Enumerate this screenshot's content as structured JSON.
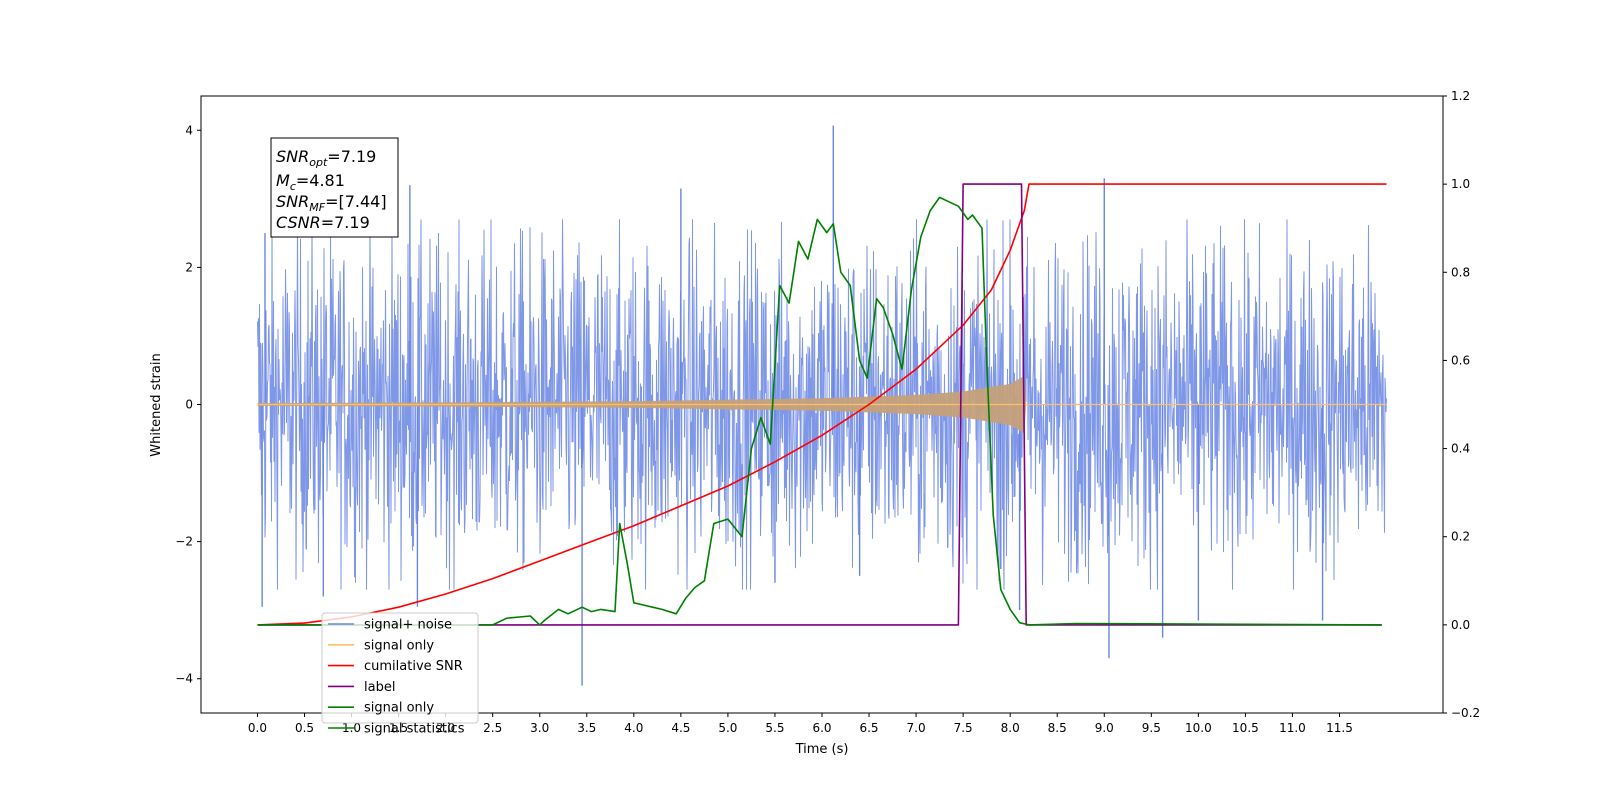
{
  "chart_data": {
    "type": "line",
    "xlabel": "Time (s)",
    "ylabel": "Whitened strain",
    "xlim": [
      -0.6,
      12.6
    ],
    "ylim_left": [
      -4.5,
      4.5
    ],
    "ylim_right": [
      -0.2,
      1.2
    ],
    "x_ticks": [
      0.0,
      0.5,
      1.0,
      1.5,
      2.0,
      2.5,
      3.0,
      3.5,
      4.0,
      4.5,
      5.0,
      5.5,
      6.0,
      6.5,
      7.0,
      7.5,
      8.0,
      8.5,
      9.0,
      9.5,
      10.0,
      10.5,
      11.0,
      11.5
    ],
    "x_tick_labels": [
      "0.0",
      "0.5",
      "1.0",
      "1.5",
      "2.0",
      "2.5",
      "3.0",
      "3.5",
      "4.0",
      "4.5",
      "5.0",
      "5.5",
      "6.0",
      "6.5",
      "7.0",
      "7.5",
      "8.0",
      "8.5",
      "9.0",
      "9.5",
      "10.0",
      "10.5",
      "11.0",
      "11.5"
    ],
    "y_left_ticks": [
      4,
      2,
      0,
      -2,
      -4
    ],
    "y_left_tick_labels": [
      "4",
      "2",
      "0",
      "−2",
      "−4"
    ],
    "y_right_ticks": [
      1.2,
      1.0,
      0.8,
      0.6,
      0.4,
      0.2,
      0.0,
      -0.2
    ],
    "y_right_tick_labels": [
      "1.2",
      "1.0",
      "0.8",
      "0.6",
      "0.4",
      "0.2",
      "0.0",
      "−0.2"
    ],
    "annotation": {
      "snr_opt": {
        "sym": "SNR",
        "sub": "opt",
        "value": "=7.19"
      },
      "mc": {
        "sym": "M",
        "sub": "c",
        "value": "=4.81"
      },
      "snr_mf": {
        "sym": "SNR",
        "sub": "MF",
        "value": "=[7.44]"
      },
      "csnr": {
        "sym": "CSNR",
        "value": "=7.19"
      }
    },
    "legend": {
      "placement": "lower-left",
      "entries": [
        {
          "label": "signal+ noise",
          "color": "#6985e3"
        },
        {
          "label": "signal only",
          "color": "#ffbf66"
        },
        {
          "label": "cumilative SNR",
          "color": "#ff0000"
        },
        {
          "label": "label",
          "color": "#800080"
        },
        {
          "label": "signal only",
          "color": "#008000"
        },
        {
          "label": "signal statistics",
          "color": "#008000"
        }
      ]
    },
    "series": [
      {
        "name": "signal+ noise",
        "axis": "left",
        "color": "#6985e3",
        "style": "dense noise",
        "x_range": [
          0.0,
          12.0
        ],
        "typical_envelope": 2.2,
        "spikes": [
          {
            "x": 0.05,
            "y": -2.95
          },
          {
            "x": 0.08,
            "y": 2.5
          },
          {
            "x": 0.7,
            "y": -2.8
          },
          {
            "x": 1.62,
            "y": 3.2
          },
          {
            "x": 1.7,
            "y": -2.95
          },
          {
            "x": 3.45,
            "y": -4.1
          },
          {
            "x": 4.5,
            "y": 3.15
          },
          {
            "x": 5.5,
            "y": -2.6
          },
          {
            "x": 6.12,
            "y": 4.07
          },
          {
            "x": 6.4,
            "y": -2.5
          },
          {
            "x": 7.9,
            "y": -2.4
          },
          {
            "x": 8.1,
            "y": -3.0
          },
          {
            "x": 9.0,
            "y": 3.3
          },
          {
            "x": 9.05,
            "y": -3.7
          },
          {
            "x": 9.62,
            "y": -3.4
          },
          {
            "x": 10.0,
            "y": -3.15
          },
          {
            "x": 11.32,
            "y": -3.15
          }
        ]
      },
      {
        "name": "signal only",
        "axis": "left",
        "color": "#ffbf66",
        "style": "chirp envelope",
        "envelope": {
          "x": [
            0.0,
            2.0,
            4.0,
            6.0,
            7.0,
            7.5,
            8.0,
            8.15,
            8.17,
            12.0
          ],
          "y": [
            0.02,
            0.03,
            0.05,
            0.09,
            0.14,
            0.19,
            0.3,
            0.42,
            0.0,
            0.0
          ]
        }
      },
      {
        "name": "cumilative SNR",
        "axis": "right",
        "color": "#ff0000",
        "x": [
          0.0,
          0.5,
          1.0,
          1.5,
          2.0,
          2.5,
          3.0,
          3.5,
          4.0,
          4.5,
          5.0,
          5.5,
          6.0,
          6.5,
          7.0,
          7.5,
          7.8,
          8.0,
          8.15,
          8.2,
          11.5,
          12.0
        ],
        "y": [
          0.0,
          0.004,
          0.018,
          0.04,
          0.07,
          0.105,
          0.145,
          0.185,
          0.225,
          0.27,
          0.315,
          0.37,
          0.43,
          0.5,
          0.58,
          0.68,
          0.76,
          0.85,
          0.94,
          1.0,
          1.0,
          1.0
        ]
      },
      {
        "name": "label",
        "axis": "right",
        "color": "#800080",
        "x": [
          0.0,
          7.45,
          7.5,
          8.12,
          8.17,
          11.95
        ],
        "y": [
          0.0,
          0.0,
          1.0,
          1.0,
          0.0,
          0.0
        ]
      },
      {
        "name": "signal statistics",
        "axis": "right",
        "color": "#008000",
        "x": [
          0.0,
          2.5,
          2.65,
          2.9,
          3.0,
          3.05,
          3.2,
          3.3,
          3.45,
          3.55,
          3.65,
          3.8,
          3.85,
          3.93,
          4.0,
          4.1,
          4.2,
          4.3,
          4.45,
          4.55,
          4.65,
          4.75,
          4.85,
          5.0,
          5.15,
          5.25,
          5.35,
          5.45,
          5.55,
          5.65,
          5.75,
          5.85,
          5.95,
          6.05,
          6.12,
          6.2,
          6.3,
          6.4,
          6.48,
          6.58,
          6.65,
          6.75,
          6.85,
          6.95,
          7.05,
          7.15,
          7.25,
          7.35,
          7.45,
          7.55,
          7.6,
          7.7,
          7.75,
          7.82,
          7.9,
          8.0,
          8.1,
          8.2,
          8.7,
          11.95
        ],
        "y": [
          0.0,
          0.0,
          0.015,
          0.02,
          0.0,
          0.01,
          0.035,
          0.025,
          0.04,
          0.03,
          0.035,
          0.03,
          0.23,
          0.14,
          0.05,
          0.045,
          0.04,
          0.035,
          0.025,
          0.06,
          0.085,
          0.1,
          0.23,
          0.24,
          0.2,
          0.4,
          0.47,
          0.41,
          0.77,
          0.73,
          0.87,
          0.83,
          0.92,
          0.89,
          0.91,
          0.8,
          0.77,
          0.6,
          0.56,
          0.74,
          0.72,
          0.66,
          0.58,
          0.76,
          0.88,
          0.94,
          0.97,
          0.96,
          0.95,
          0.92,
          0.93,
          0.9,
          0.6,
          0.25,
          0.08,
          0.035,
          0.005,
          0.0,
          0.003,
          0.0
        ]
      }
    ]
  }
}
